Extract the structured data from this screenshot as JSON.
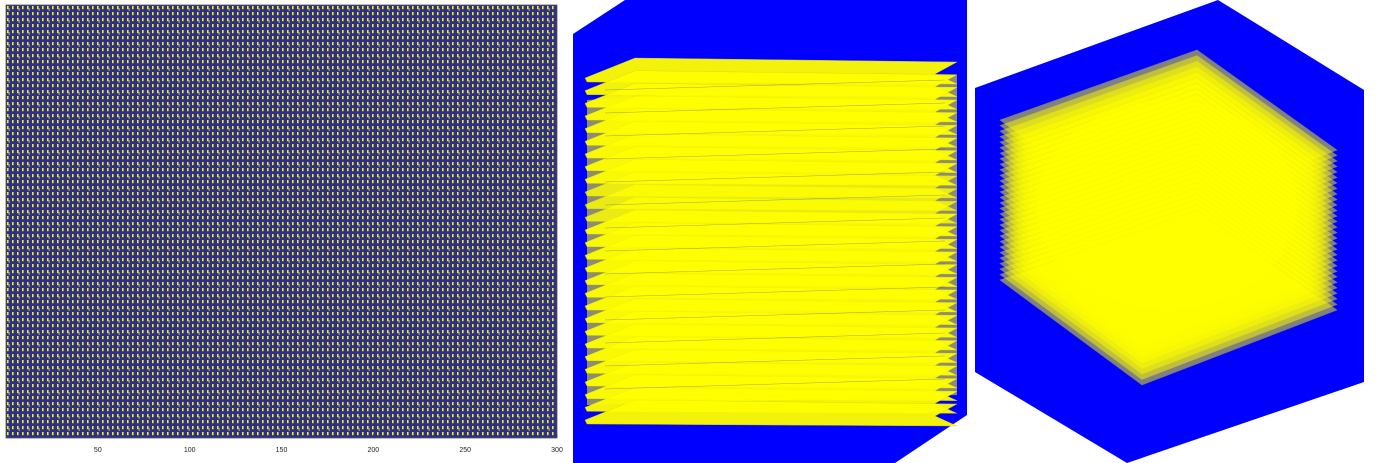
{
  "colors": {
    "navy": "#2e2e8c",
    "yellow": "#f2f20a",
    "blue": "#0000ff",
    "yellow_bright": "#ffff00"
  },
  "chart_data": {
    "type": "heatmap",
    "title": "",
    "xlabel": "",
    "ylabel": "",
    "x_tick_labels": [
      "50",
      "100",
      "150",
      "200",
      "250",
      "300"
    ],
    "xlim": [
      0,
      300
    ]
  },
  "stack_front": {
    "layer_count": 28
  },
  "stack_iso": {
    "layer_count": 30
  }
}
